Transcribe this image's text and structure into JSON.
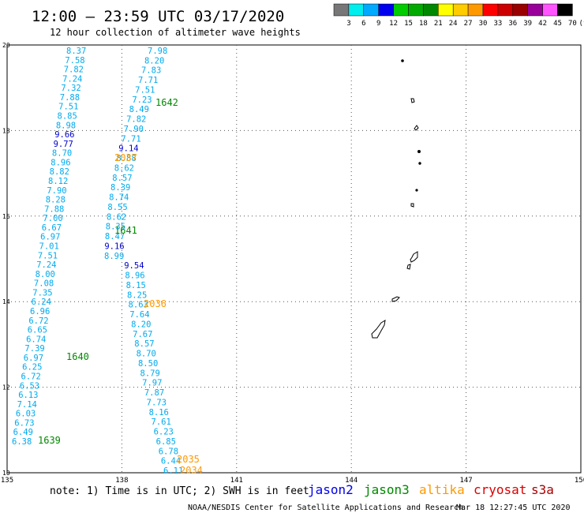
{
  "header": {
    "title": "12:00 – 23:59 UTC 03/17/2020",
    "subtitle": "12 hour collection of altimeter wave heights"
  },
  "colorbar": {
    "labels": [
      "3",
      "6",
      "9",
      "12",
      "15",
      "18",
      "21",
      "24",
      "27",
      "30",
      "33",
      "36",
      "39",
      "42",
      "45",
      "70",
      "(ft)"
    ],
    "colors": [
      "#777777",
      "#00eeee",
      "#00aaff",
      "#0000ee",
      "#00cc00",
      "#00aa00",
      "#008800",
      "#ffff00",
      "#ffcc00",
      "#ff9900",
      "#ff0000",
      "#cc0000",
      "#990000",
      "#990099",
      "#ff55ff",
      "#000000"
    ]
  },
  "axes": {
    "x_ticks": [
      "135",
      "138",
      "141",
      "144",
      "147",
      "150"
    ],
    "y_ticks": [
      "20",
      "18",
      "16",
      "14",
      "12",
      "10"
    ]
  },
  "tracks": [
    {
      "values": [
        "8.37",
        "7.58",
        "7.82",
        "7.24",
        "7.32",
        "7.88",
        "7.51",
        "8.85",
        "8.98",
        "9.66",
        "9.77",
        "8.70",
        "8.96",
        "8.82",
        "8.12",
        "7.90",
        "8.28",
        "7.88",
        "7.00",
        "6.67",
        "6.97",
        "7.01",
        "7.51",
        "7.24",
        "8.00",
        "7.08",
        "7.35",
        "6.24",
        "6.96",
        "6.72",
        "6.65",
        "6.74",
        "7.39",
        "6.97",
        "6.25",
        "6.72",
        "6.53",
        "6.13",
        "7.14",
        "6.03",
        "6.73",
        "6.49",
        "6.38"
      ]
    },
    {
      "values": [
        "7.98",
        "8.20",
        "7.83",
        "7.71",
        "7.51",
        "7.23",
        "8.49",
        "7.82",
        "7.90",
        "7.71",
        "9.14",
        "8.88",
        "8.62",
        "8.57",
        "8.39",
        "8.74",
        "8.55",
        "8.62",
        "8.35",
        "8.47",
        "9.16",
        "8.99",
        "9.54",
        "8.96",
        "8.15",
        "8.25",
        "8.63",
        "7.64",
        "8.20",
        "7.67",
        "8.57",
        "8.70",
        "8.50",
        "8.79",
        "7.97",
        "7.87",
        "7.73",
        "8.16",
        "7.61",
        "6.23",
        "6.85",
        "6.78",
        "6.44",
        "6.11"
      ]
    }
  ],
  "time_labels": [
    {
      "text": "1642",
      "color": "#008800"
    },
    {
      "text": "2037",
      "color": "#ff9900"
    },
    {
      "text": "1641",
      "color": "#008800"
    },
    {
      "text": "2036",
      "color": "#ff9900"
    },
    {
      "text": "1640",
      "color": "#008800"
    },
    {
      "text": "1639",
      "color": "#008800"
    },
    {
      "text": "2035",
      "color": "#ff9900"
    },
    {
      "text": "2034",
      "color": "#ff9900"
    }
  ],
  "footer": {
    "note": "note: 1) Time is in UTC; 2) SWH is in feet",
    "credit": "NOAA/NESDIS Center for Satellite Applications and Research",
    "timestamp": "Mar 18 12:27:45 UTC 2020"
  },
  "legend": [
    {
      "label": "jason2",
      "color": "#0000ee"
    },
    {
      "label": "jason3",
      "color": "#008800"
    },
    {
      "label": "altika",
      "color": "#ff9900"
    },
    {
      "label": "cryosat",
      "color": "#dd0000"
    },
    {
      "label": "s3a",
      "color": "#aa0000"
    }
  ],
  "colors": {
    "swh": "#00aaee",
    "swh_high": "#0000cc",
    "grid": "#555555",
    "land": "#000000"
  }
}
